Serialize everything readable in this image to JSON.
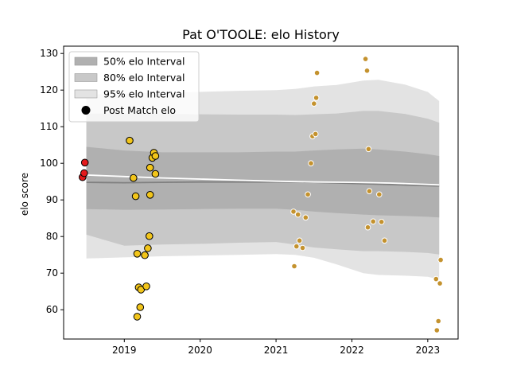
{
  "chart_data": {
    "type": "scatter",
    "title": "Pat O'TOOLE: elo History",
    "xlabel": "",
    "ylabel": "elo score",
    "xlim": [
      2018.2,
      2023.4
    ],
    "ylim": [
      52,
      132
    ],
    "x_ticks": [
      {
        "value": 2019,
        "label": "2019"
      },
      {
        "value": 2020,
        "label": "2020"
      },
      {
        "value": 2021,
        "label": "2021"
      },
      {
        "value": 2022,
        "label": "2022"
      },
      {
        "value": 2023,
        "label": "2023"
      }
    ],
    "y_ticks": [
      {
        "value": 60,
        "label": "60"
      },
      {
        "value": 70,
        "label": "70"
      },
      {
        "value": 80,
        "label": "80"
      },
      {
        "value": 90,
        "label": "90"
      },
      {
        "value": 100,
        "label": "100"
      },
      {
        "value": 110,
        "label": "110"
      },
      {
        "value": 120,
        "label": "120"
      },
      {
        "value": 130,
        "label": "130"
      }
    ],
    "legend": {
      "placement": "top-left",
      "entries": [
        {
          "label": "50% elo Interval",
          "kind": "band",
          "color": "#b0b0b0"
        },
        {
          "label": "80% elo Interval",
          "kind": "band",
          "color": "#c8c8c8"
        },
        {
          "label": "95% elo Interval",
          "kind": "band",
          "color": "#e3e3e3"
        },
        {
          "label": "Post Match elo",
          "kind": "marker",
          "color": "#000000"
        }
      ]
    },
    "bands": {
      "x": [
        2018.5,
        2019.0,
        2019.5,
        2020.0,
        2020.5,
        2021.0,
        2021.25,
        2021.5,
        2021.8,
        2022.15,
        2022.35,
        2022.7,
        2023.0,
        2023.15
      ],
      "p95": {
        "color": "#e3e3e3",
        "upper": [
          118.8,
          119.0,
          119.3,
          119.5,
          119.8,
          120.0,
          120.3,
          121.0,
          121.4,
          122.6,
          122.8,
          121.5,
          119.5,
          117.0
        ],
        "lower": [
          74.0,
          74.3,
          74.6,
          74.8,
          75.0,
          75.2,
          75.0,
          74.2,
          72.4,
          70.0,
          69.5,
          69.3,
          69.0,
          68.3
        ]
      },
      "p80": {
        "color": "#c8c8c8",
        "upper": [
          113.6,
          113.6,
          113.5,
          113.4,
          113.3,
          113.3,
          113.2,
          113.4,
          113.6,
          114.3,
          114.3,
          113.5,
          112.2,
          111.1
        ],
        "lower": [
          80.5,
          77.5,
          77.8,
          78.0,
          78.3,
          78.5,
          77.8,
          77.0,
          76.5,
          76.0,
          76.0,
          75.8,
          75.5,
          75.1
        ]
      },
      "p50": {
        "color": "#b0b0b0",
        "upper": [
          104.5,
          103.5,
          103.0,
          103.0,
          103.0,
          103.2,
          103.2,
          103.5,
          103.8,
          104.0,
          103.8,
          103.2,
          102.5,
          102.0
        ],
        "lower": [
          87.5,
          87.3,
          87.4,
          87.5,
          87.6,
          87.6,
          87.3,
          86.8,
          86.4,
          86.0,
          85.8,
          85.6,
          85.4,
          85.2
        ]
      }
    },
    "mean_line": {
      "color": "#808080",
      "x": [
        2018.5,
        2019.0,
        2019.5,
        2020.0,
        2020.5,
        2021.0,
        2021.5,
        2022.0,
        2022.5,
        2023.15
      ],
      "y": [
        94.8,
        94.7,
        94.8,
        94.9,
        94.9,
        94.9,
        94.8,
        94.5,
        94.2,
        93.8
      ]
    },
    "trend_line": {
      "color": "#ffffff",
      "x": [
        2018.5,
        2019.0,
        2019.5,
        2020.0,
        2020.5,
        2021.0,
        2021.5,
        2022.0,
        2022.5,
        2023.15
      ],
      "y": [
        96.8,
        96.4,
        96.0,
        95.7,
        95.4,
        95.1,
        94.9,
        94.8,
        94.6,
        94.1
      ]
    },
    "series": [
      {
        "color": "#e31a1c",
        "size": 4.3,
        "edge": "#000000",
        "points": [
          [
            2018.45,
            96.2
          ],
          [
            2018.47,
            97.3
          ],
          [
            2018.48,
            100.2
          ]
        ]
      },
      {
        "color": "#f2c51a",
        "size": 4.3,
        "edge": "#000000",
        "points": [
          [
            2019.07,
            106.2
          ],
          [
            2019.12,
            96.0
          ],
          [
            2019.15,
            91.0
          ],
          [
            2019.17,
            75.3
          ],
          [
            2019.17,
            58.1
          ],
          [
            2019.19,
            66.1
          ],
          [
            2019.21,
            60.7
          ],
          [
            2019.22,
            65.5
          ],
          [
            2019.27,
            74.9
          ],
          [
            2019.29,
            66.4
          ],
          [
            2019.31,
            76.8
          ],
          [
            2019.33,
            80.1
          ],
          [
            2019.34,
            91.4
          ],
          [
            2019.34,
            98.8
          ],
          [
            2019.37,
            101.5
          ],
          [
            2019.39,
            102.9
          ],
          [
            2019.41,
            102.0
          ],
          [
            2019.41,
            97.1
          ]
        ]
      },
      {
        "color": "#c4922e",
        "size": 3.3,
        "edge": "#ffffff",
        "points": [
          [
            2021.23,
            86.8
          ],
          [
            2021.24,
            71.9
          ],
          [
            2021.27,
            77.3
          ],
          [
            2021.29,
            86.0
          ],
          [
            2021.31,
            78.9
          ],
          [
            2021.35,
            76.9
          ],
          [
            2021.39,
            85.2
          ],
          [
            2021.42,
            91.5
          ],
          [
            2021.46,
            100.0
          ],
          [
            2021.48,
            107.4
          ],
          [
            2021.5,
            116.3
          ],
          [
            2021.52,
            108.0
          ],
          [
            2021.53,
            117.9
          ],
          [
            2021.54,
            124.7
          ],
          [
            2022.18,
            128.5
          ],
          [
            2022.2,
            125.3
          ],
          [
            2022.21,
            82.5
          ],
          [
            2022.22,
            103.9
          ],
          [
            2022.23,
            92.4
          ],
          [
            2022.28,
            84.1
          ],
          [
            2022.36,
            91.5
          ],
          [
            2022.39,
            84.0
          ],
          [
            2022.43,
            78.9
          ],
          [
            2023.11,
            68.4
          ],
          [
            2023.12,
            54.4
          ],
          [
            2023.14,
            56.9
          ],
          [
            2023.16,
            67.2
          ],
          [
            2023.17,
            73.6
          ]
        ]
      }
    ]
  }
}
